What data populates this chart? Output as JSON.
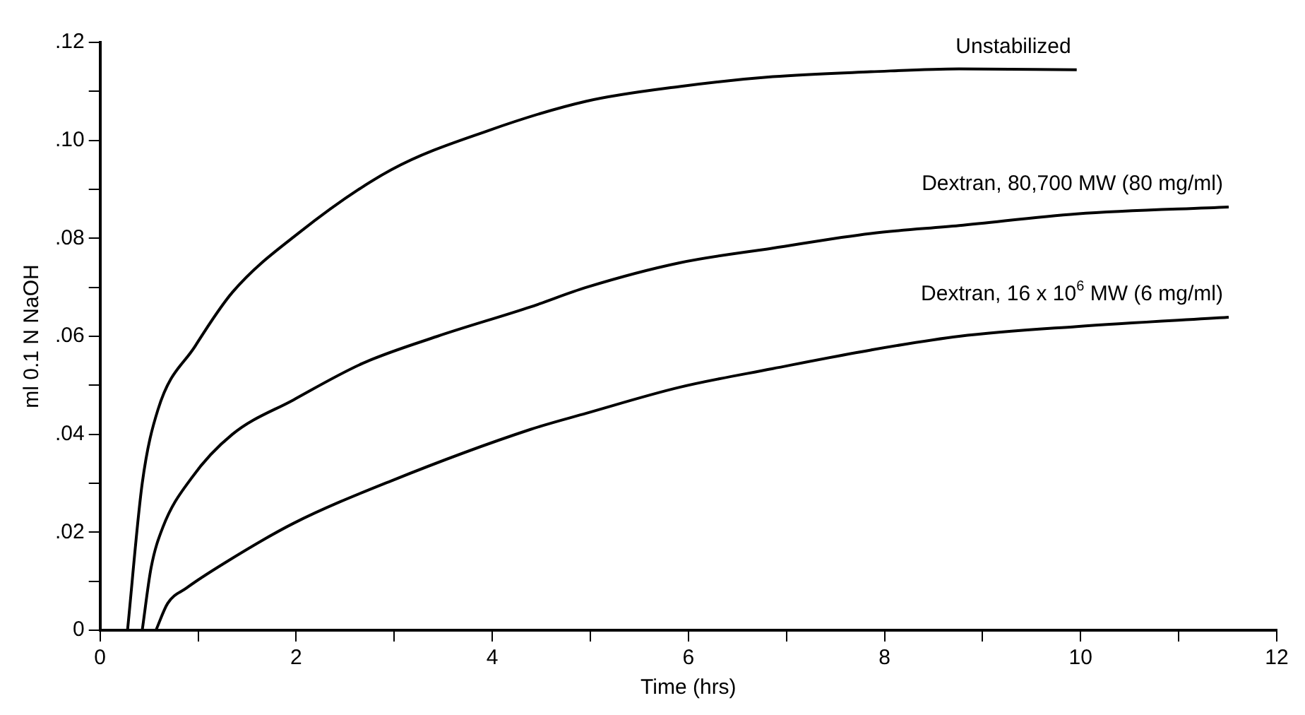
{
  "chart_data": {
    "type": "line",
    "xlabel": "Time (hrs)",
    "ylabel": "ml 0.1 N NaOH",
    "xlim": [
      0,
      12
    ],
    "ylim": [
      0,
      0.12
    ],
    "xticks": [
      0,
      {
        "value": 1,
        "label": null
      },
      2,
      {
        "value": 3,
        "label": null
      },
      4,
      {
        "value": 5,
        "label": null
      },
      6,
      {
        "value": 7,
        "label": null
      },
      8,
      {
        "value": 9,
        "label": null
      },
      10,
      {
        "value": 11,
        "label": null
      },
      12
    ],
    "yticks": [
      0,
      {
        "value": 0.01,
        "label": null
      },
      {
        "value": 0.02,
        "label": ".02"
      },
      {
        "value": 0.03,
        "label": null
      },
      {
        "value": 0.04,
        "label": ".04"
      },
      {
        "value": 0.05,
        "label": null
      },
      {
        "value": 0.06,
        "label": ".06"
      },
      {
        "value": 0.07,
        "label": null
      },
      {
        "value": 0.08,
        "label": ".08"
      },
      {
        "value": 0.09,
        "label": null
      },
      {
        "value": 0.1,
        "label": ".10"
      },
      {
        "value": 0.11,
        "label": null
      },
      {
        "value": 0.12,
        "label": ".12"
      }
    ],
    "grid": false,
    "legend": false,
    "marker": "none",
    "line_style": "solid",
    "series": [
      {
        "name": "Unstabilized",
        "color": "#000000",
        "x": [
          0.28,
          0.43,
          0.59,
          0.97,
          1.35,
          2.02,
          2.97,
          3.96,
          4.96,
          5.91,
          6.86,
          7.86,
          8.76,
          9.96
        ],
        "values": [
          0,
          0.03,
          0.045,
          0.058,
          0.069,
          0.081,
          0.094,
          0.102,
          0.108,
          0.111,
          0.113,
          0.114,
          0.1146,
          0.1144
        ]
      },
      {
        "name": "Dextran, 80,700 MW (80 mg/ml)",
        "color": "#000000",
        "x": [
          0.43,
          0.52,
          0.64,
          0.93,
          1.35,
          1.97,
          2.68,
          3.44,
          4.39,
          4.96,
          5.91,
          6.86,
          7.86,
          8.76,
          9.96,
          11.51
        ],
        "values": [
          0,
          0.0127,
          0.021,
          0.031,
          0.04,
          0.047,
          0.0545,
          0.06,
          0.066,
          0.07,
          0.075,
          0.078,
          0.081,
          0.0826,
          0.085,
          0.0864
        ]
      },
      {
        "name": "Dextran, 16 x 10$^{6}$ MW (6 mg/ml)",
        "color": "#000000",
        "x": [
          0.57,
          0.69,
          0.88,
          1.26,
          1.97,
          2.97,
          4.39,
          4.96,
          5.91,
          6.86,
          7.86,
          8.76,
          9.96,
          11.51
        ],
        "values": [
          0,
          0.0055,
          0.0086,
          0.0136,
          0.0218,
          0.0305,
          0.041,
          0.0443,
          0.0496,
          0.0534,
          0.0572,
          0.06,
          0.062,
          0.0639
        ]
      }
    ]
  }
}
